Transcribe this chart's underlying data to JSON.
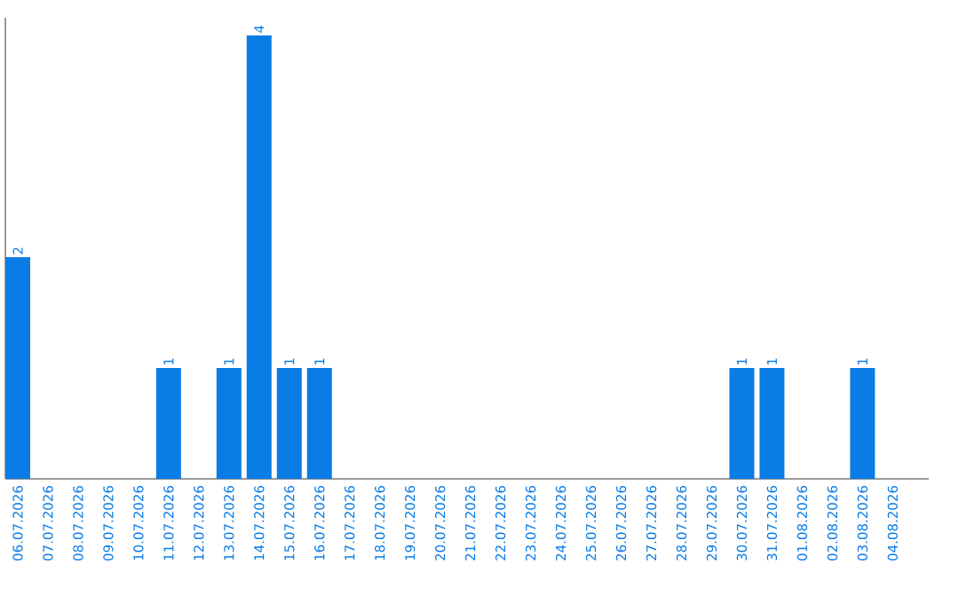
{
  "chart_data": {
    "type": "bar",
    "categories": [
      "06.07.2026",
      "07.07.2026",
      "08.07.2026",
      "09.07.2026",
      "10.07.2026",
      "11.07.2026",
      "12.07.2026",
      "13.07.2026",
      "14.07.2026",
      "15.07.2026",
      "16.07.2026",
      "17.07.2026",
      "18.07.2026",
      "19.07.2026",
      "20.07.2026",
      "21.07.2026",
      "22.07.2026",
      "23.07.2026",
      "24.07.2026",
      "25.07.2026",
      "26.07.2026",
      "27.07.2026",
      "28.07.2026",
      "29.07.2026",
      "30.07.2026",
      "31.07.2026",
      "01.08.2026",
      "02.08.2026",
      "03.08.2026",
      "04.08.2026"
    ],
    "values": [
      2,
      0,
      0,
      0,
      0,
      1,
      0,
      1,
      4,
      1,
      1,
      0,
      0,
      0,
      0,
      0,
      0,
      0,
      0,
      0,
      0,
      0,
      0,
      0,
      1,
      1,
      0,
      0,
      1,
      0
    ],
    "value_labels": [
      "2",
      null,
      null,
      null,
      null,
      "1",
      null,
      "1",
      "4",
      "1",
      "1",
      null,
      null,
      null,
      null,
      null,
      null,
      null,
      null,
      null,
      null,
      null,
      null,
      null,
      "1",
      "1",
      null,
      null,
      "1",
      null
    ],
    "color": "#0a7ce6",
    "grid": false
  }
}
